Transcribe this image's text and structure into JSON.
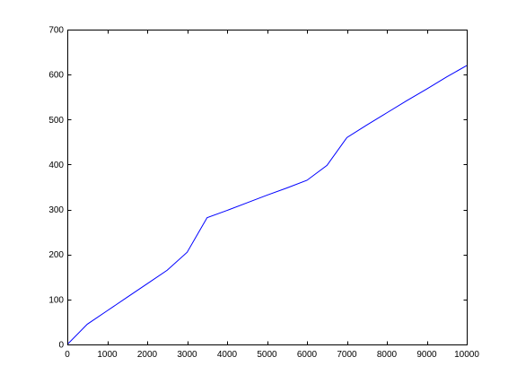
{
  "chart_data": {
    "type": "line",
    "xlim": [
      0,
      10000
    ],
    "ylim": [
      0,
      700
    ],
    "xticks": [
      0,
      1000,
      2000,
      3000,
      4000,
      5000,
      6000,
      7000,
      8000,
      9000,
      10000
    ],
    "yticks": [
      0,
      100,
      200,
      300,
      400,
      500,
      600,
      700
    ],
    "grid": false,
    "box": true,
    "series": [
      {
        "color": "#0000ff",
        "x": [
          0,
          500,
          1000,
          1500,
          2000,
          2500,
          3000,
          3500,
          4000,
          4500,
          5000,
          5500,
          6000,
          6500,
          7000,
          7500,
          8000,
          8500,
          9000,
          9500,
          10000
        ],
        "y": [
          0,
          45,
          75,
          105,
          135,
          165,
          205,
          282,
          298,
          315,
          332,
          348,
          365,
          398,
          460,
          488,
          515,
          542,
          568,
          595,
          620
        ]
      }
    ]
  }
}
